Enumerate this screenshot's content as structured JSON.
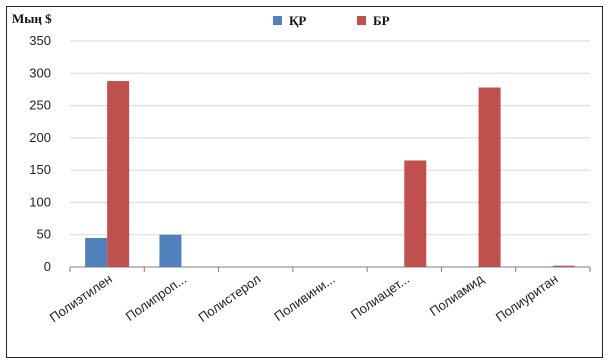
{
  "chart_data": {
    "type": "bar",
    "ylabel": "Мың $",
    "ylim": [
      0,
      350
    ],
    "yticks": [
      0,
      50,
      100,
      150,
      200,
      250,
      300,
      350
    ],
    "categories": [
      "Полиэтилен",
      "Полипроп...",
      "Полистерол",
      "Поливини...",
      "Полиацет...",
      "Полиамид",
      "Полиуритан"
    ],
    "series": [
      {
        "name": "ҚР",
        "color": "#4F81BD",
        "values": [
          45,
          50,
          0,
          0,
          0,
          0,
          0
        ]
      },
      {
        "name": "БР",
        "color": "#C0504D",
        "values": [
          288,
          0,
          0,
          0,
          165,
          278,
          2
        ]
      }
    ],
    "legend_position": "top",
    "grid": true
  }
}
